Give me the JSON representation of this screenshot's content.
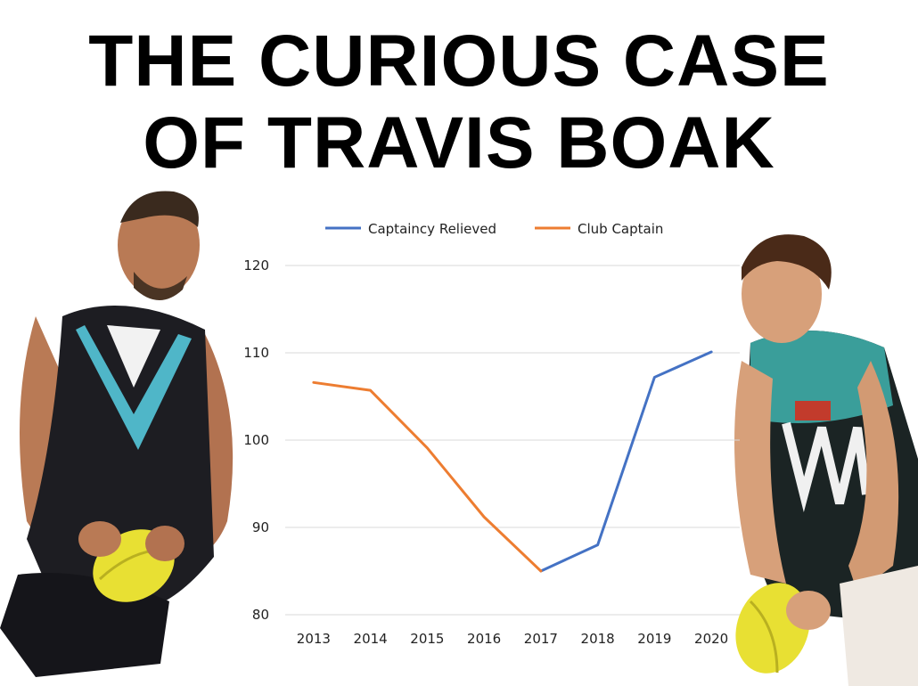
{
  "headline": {
    "line1": "THE CURIOUS CASE",
    "line2": "OF TRAVIS BOAK"
  },
  "colors": {
    "captaincy_relieved": "#4472C4",
    "club_captain": "#ED7D31",
    "grid": "#d9d9d9"
  },
  "chart_data": {
    "type": "line",
    "categories": [
      "2013",
      "2014",
      "2015",
      "2016",
      "2017",
      "2018",
      "2019",
      "2020"
    ],
    "ylim": [
      80,
      120
    ],
    "yticks": [
      80,
      90,
      100,
      110,
      120
    ],
    "grid": true,
    "legend_position": "top",
    "series": [
      {
        "name": "Captaincy Relieved",
        "color": "#4472C4",
        "values": [
          null,
          null,
          null,
          null,
          85,
          88,
          107.2,
          110.1
        ]
      },
      {
        "name": "Club Captain",
        "color": "#ED7D31",
        "values": [
          106.6,
          105.7,
          99.1,
          91.2,
          85,
          null,
          null,
          null
        ]
      }
    ]
  }
}
